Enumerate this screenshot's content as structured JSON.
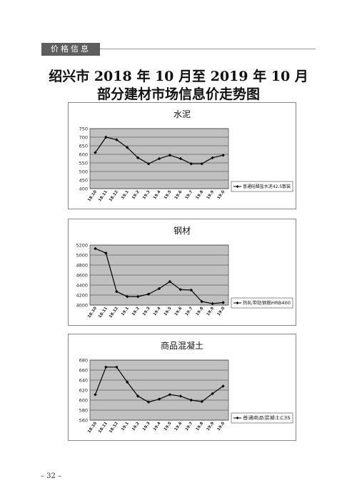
{
  "header": {
    "section_label": "价格信息"
  },
  "title": {
    "line1": "绍兴市 2018 年 10 月至 2019 年 10 月",
    "line2": "部分建材市场信息价走势图"
  },
  "categories": [
    "18.10",
    "18.11",
    "18.12",
    "19.1",
    "19.2",
    "19.3",
    "19.4",
    "19.5",
    "19.6",
    "19.7",
    "19.8",
    "19.9",
    "19.0"
  ],
  "chart_data": [
    {
      "type": "line",
      "title": "水泥",
      "ylim": [
        400,
        750
      ],
      "yticks": [
        400,
        450,
        500,
        550,
        600,
        650,
        700,
        750
      ],
      "series": [
        {
          "name": "普通硅酸盐水泥42.5散装",
          "values": [
            610,
            700,
            685,
            640,
            580,
            545,
            575,
            595,
            575,
            545,
            545,
            580,
            595
          ]
        }
      ],
      "legend": "right",
      "grid": true
    },
    {
      "type": "line",
      "title": "钢材",
      "ylim": [
        4000,
        5200
      ],
      "yticks": [
        4000,
        4200,
        4400,
        4600,
        4800,
        5000,
        5200
      ],
      "series": [
        {
          "name": "热轧带肋钢筋HRB400",
          "values": [
            5130,
            5040,
            4270,
            4170,
            4170,
            4220,
            4330,
            4470,
            4310,
            4300,
            4070,
            4030,
            4050
          ]
        }
      ],
      "legend": "right",
      "grid": true
    },
    {
      "type": "line",
      "title": "商品混凝土",
      "ylim": [
        560,
        680
      ],
      "yticks": [
        560,
        580,
        600,
        620,
        640,
        660,
        680
      ],
      "series": [
        {
          "name": "普通商品混凝土C35",
          "values": [
            611,
            666,
            666,
            636,
            608,
            596,
            602,
            611,
            608,
            600,
            597,
            613,
            628
          ]
        }
      ],
      "legend": "right",
      "grid": true
    }
  ],
  "footer": {
    "page_number": "– 32 –"
  }
}
